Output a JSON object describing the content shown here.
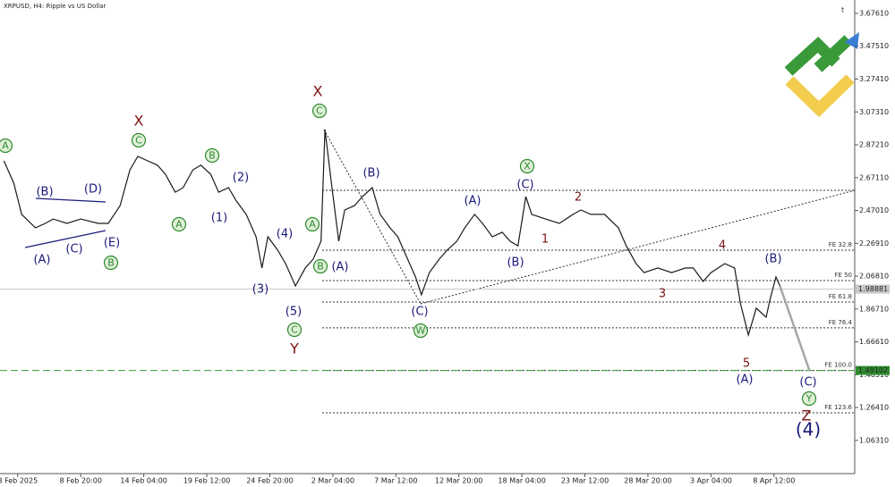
{
  "chart_data": {
    "type": "line",
    "title": "XRPUSD, H4:  Ripple vs US Dollar",
    "color": "#1a1a1a",
    "x": [
      2,
      7,
      11,
      18,
      23,
      27,
      34,
      41,
      50,
      55,
      61,
      66,
      70,
      75,
      80,
      84,
      89,
      93,
      98,
      102,
      107,
      111,
      116,
      120,
      125,
      130,
      133,
      136,
      141,
      145,
      150,
      155,
      159,
      163,
      165,
      168,
      172,
      175,
      180,
      184,
      189,
      193,
      198,
      202,
      207,
      211,
      214,
      218,
      223,
      227,
      232,
      236,
      241,
      245,
      250,
      255,
      259,
      263,
      267,
      270,
      277,
      284,
      291,
      295,
      300,
      307,
      314,
      318,
      323,
      327,
      334,
      341,
      348,
      352,
      357,
      361,
      368,
      373,
      376,
      380,
      384,
      389,
      391,
      394,
      396
    ],
    "values": [
      2.774,
      2.637,
      2.446,
      2.364,
      2.391,
      2.418,
      2.391,
      2.418,
      2.391,
      2.391,
      2.5,
      2.719,
      2.801,
      2.774,
      2.747,
      2.692,
      2.582,
      2.61,
      2.719,
      2.747,
      2.692,
      2.582,
      2.61,
      2.528,
      2.446,
      2.309,
      2.118,
      2.309,
      2.227,
      2.145,
      2.008,
      2.118,
      2.172,
      2.282,
      2.965,
      2.664,
      2.282,
      2.473,
      2.5,
      2.555,
      2.61,
      2.446,
      2.364,
      2.309,
      2.172,
      2.063,
      1.954,
      2.09,
      2.172,
      2.227,
      2.282,
      2.364,
      2.446,
      2.391,
      2.309,
      2.337,
      2.282,
      2.254,
      2.555,
      2.446,
      2.418,
      2.391,
      2.446,
      2.473,
      2.446,
      2.446,
      2.364,
      2.254,
      2.145,
      2.09,
      2.118,
      2.09,
      2.118,
      2.118,
      2.036,
      2.09,
      2.145,
      2.118,
      1.899,
      1.708,
      1.872,
      1.817,
      1.926,
      2.063,
      2.008
    ],
    "projection": {
      "x": [
        396,
        411
      ],
      "values": [
        2.008,
        1.491
      ],
      "color": "#a6a6a6"
    },
    "levels": [
      {
        "label": "FE 32.8",
        "value": 2.227
      },
      {
        "label": "FE 50",
        "value": 2.041
      },
      {
        "label": "FE 61.8",
        "value": 1.91
      },
      {
        "label": "FE 76.4",
        "value": 1.752
      },
      {
        "label": "FE 100.0",
        "value": 1.491
      },
      {
        "label": "FE 123.6",
        "value": 1.232
      }
    ],
    "price_marker": {
      "value": 1.98881,
      "label": "1.98881"
    },
    "target_marker": {
      "value": 1.49102,
      "label": "1.49102"
    },
    "xlim": [
      0,
      434
    ],
    "ylim": [
      0.86,
      3.758
    ],
    "xticks": [
      {
        "value": 9,
        "label": "3 Feb 2025"
      },
      {
        "value": 41,
        "label": "8 Feb 20:00"
      },
      {
        "value": 73,
        "label": "14 Feb 04:00"
      },
      {
        "value": 105,
        "label": "19 Feb 12:00"
      },
      {
        "value": 137,
        "label": "24 Feb 20:00"
      },
      {
        "value": 169,
        "label": "2 Mar 04:00"
      },
      {
        "value": 201,
        "label": "7 Mar 12:00"
      },
      {
        "value": 233,
        "label": "12 Mar 20:00"
      },
      {
        "value": 265,
        "label": "18 Mar 04:00"
      },
      {
        "value": 297,
        "label": "23 Mar 12:00"
      },
      {
        "value": 329,
        "label": "28 Mar 20:00"
      },
      {
        "value": 361,
        "label": "3 Apr 04:00"
      },
      {
        "value": 393,
        "label": "8 Apr 12:00"
      }
    ],
    "yticks": [
      {
        "value": 3.6761,
        "label": "3.67610"
      },
      {
        "value": 3.4751,
        "label": "3.47510"
      },
      {
        "value": 3.2741,
        "label": "3.27410"
      },
      {
        "value": 3.0731,
        "label": "3.07310"
      },
      {
        "value": 2.8721,
        "label": "2.87210"
      },
      {
        "value": 2.6711,
        "label": "2.67110"
      },
      {
        "value": 2.4701,
        "label": "2.47010"
      },
      {
        "value": 2.2691,
        "label": "2.26910"
      },
      {
        "value": 2.0681,
        "label": "2.06810"
      },
      {
        "value": 1.8671,
        "label": "1.86710"
      },
      {
        "value": 1.6661,
        "label": "1.66610"
      },
      {
        "value": 1.4651,
        "label": "1.46510"
      },
      {
        "value": 1.2641,
        "label": "1.26410"
      },
      {
        "value": 1.0631,
        "label": "1.06310"
      }
    ],
    "wave_labels": [
      "(B)",
      "(D)",
      "(A)",
      "(C)",
      "(E)",
      "(2)",
      "(1)",
      "(4)",
      "(3)",
      "(5)",
      "(A)",
      "(B)",
      "(C)",
      "(A)",
      "(C)",
      "(B)",
      "(B)",
      "(A)",
      "(C)",
      "(4)",
      "A",
      "C",
      "A",
      "B",
      "B",
      "A",
      "B",
      "C",
      "C",
      "W",
      "X",
      "Y",
      "X",
      "X",
      "Y",
      "Z",
      "1",
      "2",
      "3",
      "4",
      "5"
    ]
  }
}
